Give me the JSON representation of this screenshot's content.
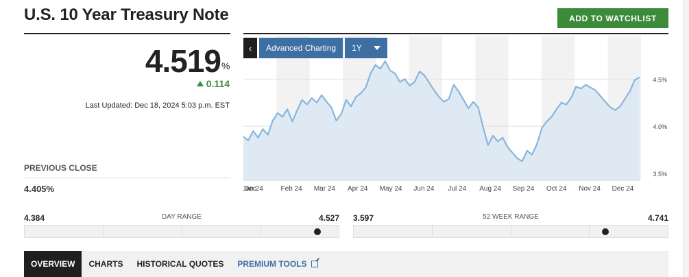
{
  "header": {
    "title": "U.S. 10 Year Treasury Note",
    "watchlist_label": "ADD TO WATCHLIST"
  },
  "quote": {
    "price": "4.519",
    "unit": "%",
    "change": "0.114",
    "last_updated": "Last Updated: Dec 18, 2024 5:03 p.m. EST",
    "prev_close_label": "PREVIOUS CLOSE",
    "prev_close": "4.405%",
    "up_color": "#3b8b3b"
  },
  "chart_controls": {
    "back": "‹",
    "advanced": "Advanced Charting",
    "period": "1Y"
  },
  "chart_data": {
    "type": "area",
    "x_ticks": [
      "Jan 24",
      "Feb 24",
      "Mar 24",
      "Apr 24",
      "May 24",
      "Jun 24",
      "Jul 24",
      "Aug 24",
      "Sep 24",
      "Oct 24",
      "Nov 24",
      "Dec 24"
    ],
    "y_ticks": [
      "4.5%",
      "4.0%",
      "3.5%"
    ],
    "ylim": [
      3.42,
      4.96
    ],
    "start_label": "Dec",
    "values": [
      3.89,
      3.85,
      3.95,
      3.88,
      3.97,
      3.91,
      4.06,
      4.14,
      4.1,
      4.18,
      4.05,
      4.17,
      4.28,
      4.23,
      4.3,
      4.25,
      4.33,
      4.26,
      4.2,
      4.06,
      4.13,
      4.28,
      4.21,
      4.31,
      4.35,
      4.41,
      4.56,
      4.65,
      4.61,
      4.69,
      4.59,
      4.56,
      4.47,
      4.5,
      4.43,
      4.47,
      4.58,
      4.54,
      4.46,
      4.38,
      4.31,
      4.26,
      4.29,
      4.44,
      4.37,
      4.28,
      4.19,
      4.26,
      4.2,
      3.99,
      3.8,
      3.9,
      3.84,
      3.88,
      3.78,
      3.72,
      3.66,
      3.63,
      3.74,
      3.7,
      3.81,
      3.98,
      4.05,
      4.1,
      4.18,
      4.25,
      4.23,
      4.3,
      4.42,
      4.4,
      4.44,
      4.41,
      4.38,
      4.32,
      4.26,
      4.2,
      4.17,
      4.21,
      4.29,
      4.37,
      4.49,
      4.52
    ],
    "bands": [
      "white",
      "grey",
      "white",
      "grey",
      "white",
      "grey",
      "white",
      "grey",
      "white",
      "grey",
      "white",
      "grey"
    ],
    "line_color": "#86b6df",
    "fill_color": "#dfe9f3",
    "grid": true
  },
  "day_range": {
    "low": "4.384",
    "label": "DAY RANGE",
    "high": "4.527",
    "position": 0.93
  },
  "week52_range": {
    "low": "3.597",
    "label": "52 WEEK RANGE",
    "high": "4.741",
    "position": 0.8
  },
  "tabs": [
    {
      "label": "OVERVIEW"
    },
    {
      "label": "CHARTS"
    },
    {
      "label": "HISTORICAL QUOTES"
    },
    {
      "label": "PREMIUM TOOLS"
    }
  ]
}
